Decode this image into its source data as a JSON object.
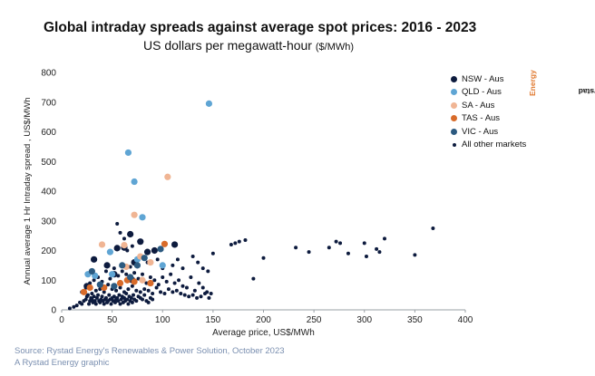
{
  "title": "Global intraday spreads against average spot prices: 2016 - 2023",
  "subtitle_main": "US dollars per megawatt-hour",
  "subtitle_unit": "($/MWh)",
  "brand_main": "Rystad",
  "brand_accent": "Energy",
  "footer": {
    "source": "Source: Rystad Energy's Renewables & Power Solution, October 2023",
    "graphic": "A Rystad Energy graphic"
  },
  "chart_data": {
    "type": "scatter",
    "title": "Global intraday spreads against average spot prices: 2016 - 2023",
    "xlabel": "Average price, US$/MWh",
    "ylabel": "Annual average 1 Hr Intraday spread , US$/MWh",
    "xlim": [
      0,
      400
    ],
    "ylim": [
      0,
      800
    ],
    "x_ticks": [
      "0",
      "50",
      "100",
      "150",
      "200",
      "250",
      "300",
      "350",
      "400"
    ],
    "y_ticks": [
      "0",
      "100",
      "200",
      "300",
      "400",
      "500",
      "600",
      "700",
      "800"
    ],
    "grid": false,
    "legend_position": "right",
    "series": [
      {
        "name": "NSW - Aus",
        "color": "#0d1b3e",
        "marker": "large",
        "points": [
          [
            25,
            80
          ],
          [
            32,
            170
          ],
          [
            45,
            150
          ],
          [
            52,
            120
          ],
          [
            55,
            208
          ],
          [
            62,
            210
          ],
          [
            68,
            255
          ],
          [
            70,
            100
          ],
          [
            72,
            160
          ],
          [
            78,
            230
          ],
          [
            85,
            195
          ],
          [
            92,
            200
          ],
          [
            112,
            220
          ]
        ]
      },
      {
        "name": "QLD - Aus",
        "color": "#5fa5d4",
        "marker": "large",
        "points": [
          [
            26,
            120
          ],
          [
            33,
            115
          ],
          [
            48,
            195
          ],
          [
            50,
            120
          ],
          [
            66,
            530
          ],
          [
            72,
            432
          ],
          [
            75,
            170
          ],
          [
            80,
            312
          ],
          [
            100,
            150
          ],
          [
            146,
            695
          ]
        ]
      },
      {
        "name": "SA - Aus",
        "color": "#f0b594",
        "marker": "large",
        "points": [
          [
            40,
            220
          ],
          [
            62,
            218
          ],
          [
            64,
            145
          ],
          [
            72,
            320
          ],
          [
            78,
            180
          ],
          [
            80,
            100
          ],
          [
            88,
            160
          ],
          [
            105,
            448
          ]
        ]
      },
      {
        "name": "TAS - Aus",
        "color": "#d86b2a",
        "marker": "large",
        "points": [
          [
            22,
            60
          ],
          [
            28,
            75
          ],
          [
            42,
            75
          ],
          [
            58,
            90
          ],
          [
            65,
            100
          ],
          [
            72,
            95
          ],
          [
            88,
            90
          ],
          [
            102,
            222
          ]
        ]
      },
      {
        "name": "VIC - Aus",
        "color": "#2c5a80",
        "marker": "large",
        "points": [
          [
            30,
            130
          ],
          [
            38,
            85
          ],
          [
            52,
            80
          ],
          [
            60,
            150
          ],
          [
            68,
            110
          ],
          [
            75,
            150
          ],
          [
            82,
            175
          ],
          [
            98,
            205
          ]
        ]
      },
      {
        "name": "All other markets",
        "color": "#0d1b3e",
        "marker": "small",
        "points": [
          [
            8,
            5
          ],
          [
            12,
            10
          ],
          [
            15,
            15
          ],
          [
            18,
            25
          ],
          [
            20,
            20
          ],
          [
            22,
            30
          ],
          [
            24,
            35
          ],
          [
            25,
            45
          ],
          [
            26,
            50
          ],
          [
            27,
            20
          ],
          [
            28,
            30
          ],
          [
            29,
            40
          ],
          [
            30,
            35
          ],
          [
            31,
            25
          ],
          [
            32,
            45
          ],
          [
            33,
            30
          ],
          [
            34,
            20
          ],
          [
            35,
            40
          ],
          [
            36,
            50
          ],
          [
            37,
            30
          ],
          [
            38,
            25
          ],
          [
            39,
            35
          ],
          [
            40,
            45
          ],
          [
            41,
            30
          ],
          [
            42,
            20
          ],
          [
            43,
            35
          ],
          [
            44,
            40
          ],
          [
            45,
            25
          ],
          [
            46,
            30
          ],
          [
            47,
            50
          ],
          [
            48,
            35
          ],
          [
            49,
            20
          ],
          [
            50,
            40
          ],
          [
            51,
            30
          ],
          [
            52,
            45
          ],
          [
            53,
            25
          ],
          [
            54,
            35
          ],
          [
            55,
            40
          ],
          [
            56,
            30
          ],
          [
            57,
            50
          ],
          [
            58,
            20
          ],
          [
            59,
            35
          ],
          [
            60,
            45
          ],
          [
            61,
            25
          ],
          [
            62,
            40
          ],
          [
            63,
            30
          ],
          [
            64,
            55
          ],
          [
            65,
            35
          ],
          [
            66,
            20
          ],
          [
            67,
            45
          ],
          [
            68,
            30
          ],
          [
            69,
            40
          ],
          [
            70,
            25
          ],
          [
            71,
            50
          ],
          [
            72,
            35
          ],
          [
            74,
            30
          ],
          [
            76,
            45
          ],
          [
            78,
            40
          ],
          [
            80,
            35
          ],
          [
            82,
            50
          ],
          [
            84,
            30
          ],
          [
            86,
            25
          ],
          [
            88,
            40
          ],
          [
            90,
            35
          ],
          [
            20,
            60
          ],
          [
            24,
            75
          ],
          [
            28,
            90
          ],
          [
            32,
            100
          ],
          [
            36,
            110
          ],
          [
            40,
            95
          ],
          [
            44,
            130
          ],
          [
            48,
            105
          ],
          [
            52,
            140
          ],
          [
            56,
            115
          ],
          [
            60,
            130
          ],
          [
            64,
            120
          ],
          [
            68,
            145
          ],
          [
            72,
            125
          ],
          [
            76,
            105
          ],
          [
            80,
            120
          ],
          [
            84,
            90
          ],
          [
            88,
            110
          ],
          [
            92,
            100
          ],
          [
            96,
            85
          ],
          [
            100,
            110
          ],
          [
            104,
            95
          ],
          [
            108,
            120
          ],
          [
            112,
            90
          ],
          [
            116,
            100
          ],
          [
            120,
            80
          ],
          [
            124,
            75
          ],
          [
            128,
            110
          ],
          [
            132,
            65
          ],
          [
            136,
            90
          ],
          [
            140,
            75
          ],
          [
            144,
            60
          ],
          [
            148,
            55
          ],
          [
            30,
            55
          ],
          [
            34,
            65
          ],
          [
            38,
            70
          ],
          [
            42,
            60
          ],
          [
            46,
            85
          ],
          [
            50,
            70
          ],
          [
            54,
            65
          ],
          [
            58,
            75
          ],
          [
            62,
            60
          ],
          [
            66,
            70
          ],
          [
            70,
            80
          ],
          [
            74,
            65
          ],
          [
            78,
            60
          ],
          [
            82,
            70
          ],
          [
            86,
            65
          ],
          [
            90,
            55
          ],
          [
            94,
            75
          ],
          [
            98,
            60
          ],
          [
            102,
            55
          ],
          [
            106,
            70
          ],
          [
            110,
            60
          ],
          [
            114,
            65
          ],
          [
            118,
            55
          ],
          [
            122,
            50
          ],
          [
            126,
            45
          ],
          [
            130,
            50
          ],
          [
            134,
            40
          ],
          [
            138,
            45
          ],
          [
            142,
            55
          ],
          [
            146,
            40
          ],
          [
            55,
            290
          ],
          [
            58,
            260
          ],
          [
            62,
            240
          ],
          [
            65,
            200
          ],
          [
            70,
            215
          ],
          [
            85,
            160
          ],
          [
            95,
            170
          ],
          [
            100,
            140
          ],
          [
            110,
            150
          ],
          [
            115,
            170
          ],
          [
            120,
            140
          ],
          [
            130,
            180
          ],
          [
            135,
            160
          ],
          [
            140,
            140
          ],
          [
            145,
            130
          ],
          [
            150,
            190
          ],
          [
            168,
            220
          ],
          [
            172,
            225
          ],
          [
            176,
            230
          ],
          [
            182,
            235
          ],
          [
            190,
            105
          ],
          [
            200,
            175
          ],
          [
            232,
            210
          ],
          [
            245,
            195
          ],
          [
            265,
            210
          ],
          [
            272,
            230
          ],
          [
            276,
            225
          ],
          [
            284,
            190
          ],
          [
            300,
            225
          ],
          [
            302,
            180
          ],
          [
            312,
            205
          ],
          [
            315,
            195
          ],
          [
            320,
            240
          ],
          [
            350,
            185
          ],
          [
            368,
            275
          ]
        ]
      }
    ]
  }
}
